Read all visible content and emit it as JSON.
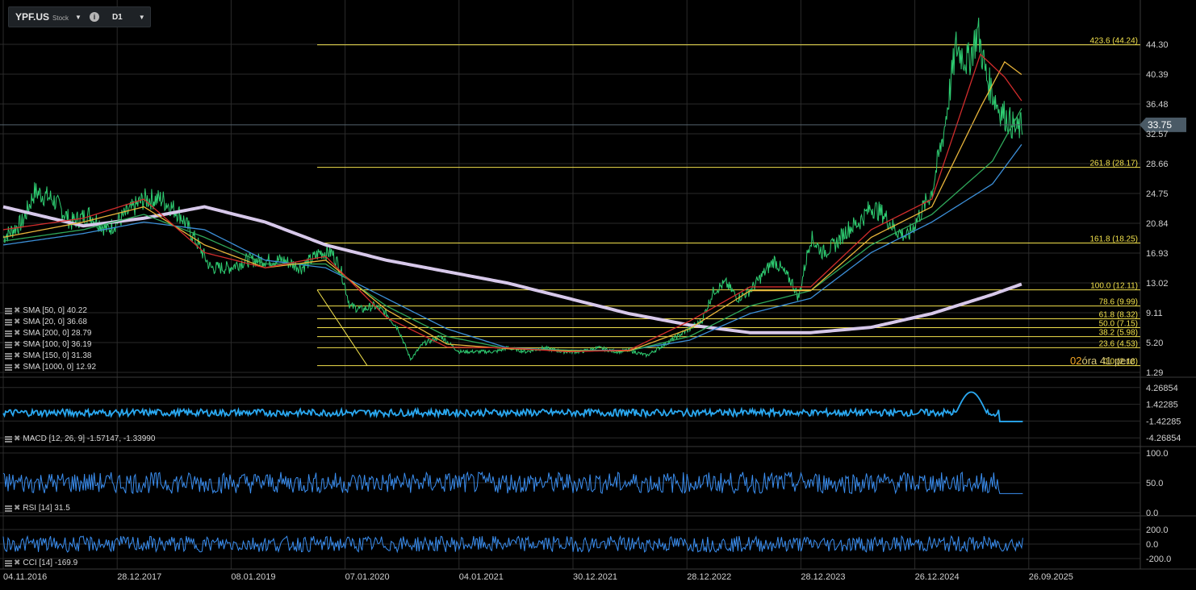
{
  "header": {
    "symbol": "YPF.US",
    "type": "Stock",
    "timeframe": "D1"
  },
  "colors": {
    "background": "#000000",
    "grid": "#2a2a2a",
    "fib": "#f2e14c",
    "sma50": "#e8b43a",
    "sma20": "#d12c2c",
    "sma100": "#2fa85a",
    "sma150": "#3c8fd8",
    "sma1000": "#d7c8ea",
    "price_up": "#2ecc71",
    "price_down": "#e0b020",
    "macd": "#2aa8f0",
    "rsi": "#3a8ef0",
    "cci": "#3a8ef0",
    "price_tag": "#4a5a66"
  },
  "icons": [
    "chevron-down-icon",
    "info-icon",
    "layers-icon",
    "close-icon"
  ],
  "main_legend": [
    {
      "label": "SMA [50, 0] 40.22"
    },
    {
      "label": "SMA [20, 0] 36.68"
    },
    {
      "label": "SMA [200, 0] 28.79"
    },
    {
      "label": "SMA [100, 0] 36.19"
    },
    {
      "label": "SMA [150, 0] 31.38"
    },
    {
      "label": "SMA [1000, 0] 12.92"
    }
  ],
  "macd_legend": "MACD [12, 26, 9] -1.57147, -1.33990",
  "rsi_legend": "RSI [14] 31.5",
  "cci_legend": "CCI [14] -169.9",
  "timer": {
    "hours": "02",
    "rest": "óra 41 perc"
  },
  "chart_data": [
    {
      "type": "line",
      "title": "",
      "y_ticks": [
        "44.30",
        "40.39",
        "36.48",
        "32.57",
        "28.66",
        "24.75",
        "20.84",
        "16.93",
        "13.02",
        "9.11",
        "5.20",
        "1.29"
      ],
      "ylim": [
        1.29,
        46.5
      ],
      "x_ticks": [
        "04.11.2016",
        "28.12.2017",
        "08.01.2019",
        "07.01.2020",
        "04.01.2021",
        "30.12.2021",
        "28.12.2022",
        "28.12.2023",
        "26.12.2024",
        "26.09.2025"
      ],
      "current_price": "33.75",
      "fib_levels": [
        {
          "label": "423.6 (44.24)",
          "value": 44.24
        },
        {
          "label": "261.8 (28.17)",
          "value": 28.17
        },
        {
          "label": "161.8 (18.25)",
          "value": 18.25
        },
        {
          "label": "100.0 (12.11)",
          "value": 12.11
        },
        {
          "label": "78.6 (9.99)",
          "value": 9.99
        },
        {
          "label": "61.8 (8.32)",
          "value": 8.32
        },
        {
          "label": "50.0 (7.15)",
          "value": 7.15
        },
        {
          "label": "38.2 (5.98)",
          "value": 5.98
        },
        {
          "label": "23.6 (4.53)",
          "value": 4.53
        },
        {
          "label": "0.0 (2.18)",
          "value": 2.18
        }
      ],
      "price_series": {
        "name": "YPF.US",
        "x": [
          2016.84,
          2017.0,
          2017.1,
          2017.25,
          2017.4,
          2017.55,
          2017.7,
          2017.85,
          2018.0,
          2018.15,
          2018.3,
          2018.45,
          2018.55,
          2018.7,
          2018.85,
          2019.0,
          2019.15,
          2019.3,
          2019.45,
          2019.55,
          2019.62,
          2019.7,
          2019.8,
          2019.9,
          2020.0,
          2020.1,
          2020.2,
          2020.3,
          2020.45,
          2020.6,
          2020.75,
          2020.9,
          2021.0,
          2021.15,
          2021.3,
          2021.45,
          2021.6,
          2021.75,
          2021.9,
          2022.0,
          2022.15,
          2022.3,
          2022.4,
          2022.5,
          2022.6,
          2022.7,
          2022.8,
          2022.9,
          2023.0,
          2023.1,
          2023.2,
          2023.3,
          2023.35,
          2023.4,
          2023.5,
          2023.6,
          2023.7,
          2023.8,
          2023.9,
          2024.0,
          2024.1,
          2024.2,
          2024.3,
          2024.4,
          2024.5,
          2024.6,
          2024.7,
          2024.8,
          2024.88,
          2024.95,
          2025.0,
          2025.05,
          2025.1,
          2025.15,
          2025.2,
          2025.25
        ],
        "values": [
          19,
          21,
          25,
          24,
          21,
          22,
          20,
          22,
          24,
          24,
          22,
          18,
          15,
          15,
          16,
          16,
          16,
          15,
          17,
          17,
          15,
          10,
          9.5,
          10,
          9,
          7,
          3,
          5,
          6,
          4,
          4,
          4,
          4.5,
          4,
          4.5,
          4,
          4,
          4.5,
          4,
          4.2,
          3.5,
          5,
          6,
          7,
          8,
          12,
          13,
          11,
          12,
          14,
          16,
          14,
          13,
          11,
          19,
          17,
          18,
          20,
          21,
          23,
          22,
          20,
          19,
          22,
          25,
          33,
          44,
          42,
          46,
          40,
          38,
          36,
          35,
          34,
          33,
          33.75
        ]
      },
      "sma_series": [
        {
          "name": "SMA [1000, 0] 12.92",
          "x": [
            2016.84,
            2017.5,
            2018.0,
            2018.5,
            2019.0,
            2019.5,
            2020.0,
            2020.5,
            2021.0,
            2021.5,
            2022.0,
            2022.5,
            2023.0,
            2023.5,
            2024.0,
            2024.5,
            2025.0,
            2025.25
          ],
          "values": [
            23,
            20.5,
            21.5,
            23,
            21,
            18,
            16,
            14.5,
            13,
            11,
            9,
            7.5,
            6.5,
            6.5,
            7.2,
            9,
            11.5,
            12.92
          ]
        },
        {
          "name": "SMA [150, 0] 31.38",
          "x": [
            2016.84,
            2017.5,
            2018.0,
            2018.5,
            2019.0,
            2019.5,
            2020.0,
            2020.5,
            2021.0,
            2021.5,
            2022.0,
            2022.5,
            2023.0,
            2023.5,
            2024.0,
            2024.5,
            2025.0,
            2025.25
          ],
          "values": [
            18,
            19.5,
            21,
            20,
            16,
            15,
            11,
            7,
            4.5,
            4.2,
            4.2,
            5.5,
            9,
            11,
            17,
            21,
            26,
            31.38
          ]
        },
        {
          "name": "SMA [100, 0] 36.19",
          "x": [
            2016.84,
            2017.5,
            2018.0,
            2018.5,
            2019.0,
            2019.5,
            2020.0,
            2020.5,
            2021.0,
            2021.5,
            2022.0,
            2022.5,
            2023.0,
            2023.5,
            2024.0,
            2024.5,
            2025.0,
            2025.25
          ],
          "values": [
            18.5,
            20,
            22,
            19,
            15.5,
            15.5,
            10,
            6,
            4.4,
            4.2,
            4.1,
            6,
            10,
            12,
            18,
            22,
            29,
            36.19
          ]
        },
        {
          "name": "SMA [50, 0] 40.22",
          "x": [
            2016.84,
            2017.5,
            2018.0,
            2018.5,
            2019.0,
            2019.5,
            2020.0,
            2020.5,
            2021.0,
            2021.5,
            2022.0,
            2022.5,
            2023.0,
            2023.5,
            2024.0,
            2024.5,
            2024.9,
            2025.1,
            2025.25
          ],
          "values": [
            19,
            21,
            23,
            18,
            15,
            16,
            9.5,
            5,
            4.4,
            4.1,
            4.1,
            7,
            12,
            12,
            19,
            23,
            36,
            42,
            40.22
          ]
        },
        {
          "name": "SMA [20, 0] 36.68",
          "x": [
            2016.84,
            2017.5,
            2018.0,
            2018.5,
            2019.0,
            2019.5,
            2020.0,
            2020.5,
            2021.0,
            2021.5,
            2022.0,
            2022.5,
            2023.0,
            2023.5,
            2024.0,
            2024.5,
            2024.9,
            2025.1,
            2025.25
          ],
          "values": [
            20,
            21.5,
            24,
            17,
            15,
            16.5,
            8.5,
            4.6,
            4.5,
            4,
            4.2,
            8,
            12.5,
            12.5,
            20,
            24,
            43,
            40,
            36.68
          ]
        }
      ]
    },
    {
      "type": "line",
      "title": "",
      "y_ticks": [
        "4.26854",
        "1.42285",
        "-1.42285",
        "-4.26854"
      ],
      "ylim": [
        -5.2,
        5.2
      ],
      "series": [
        {
          "name": "MACD [12, 26, 9]",
          "last": -1.57147,
          "signal": -1.3399
        }
      ]
    },
    {
      "type": "line",
      "title": "",
      "y_ticks": [
        "100.0",
        "50.0",
        "0.0"
      ],
      "ylim": [
        0,
        100
      ],
      "series": [
        {
          "name": "RSI [14]",
          "last": 31.5
        }
      ]
    },
    {
      "type": "line",
      "title": "",
      "y_ticks": [
        "200.0",
        "0.0",
        "-200.0"
      ],
      "ylim": [
        -300,
        300
      ],
      "series": [
        {
          "name": "CCI [14]",
          "last": -169.9
        }
      ]
    }
  ]
}
